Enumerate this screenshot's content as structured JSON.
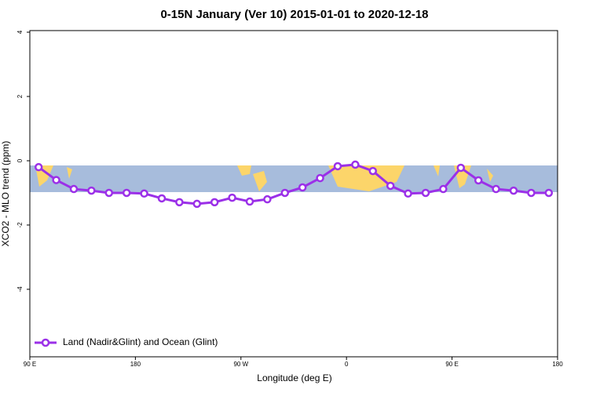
{
  "chart_data": {
    "type": "line",
    "title": "0-15N January (Ver 10)   2015-01-01 to 2020-12-18",
    "x_label": "Longitude (deg E)",
    "y_label": "XCO2 - MLO trend (ppm)",
    "legend_position": "bottom-left",
    "xlim": [
      90,
      540
    ],
    "ylim": [
      -6.1,
      4.05
    ],
    "xticks": [
      {
        "value": 90,
        "label": "90 E"
      },
      180,
      {
        "value": 270,
        "label": "90 W"
      },
      {
        "value": 360,
        "label": "0"
      },
      {
        "value": 450,
        "label": "90 E"
      },
      {
        "value": 540,
        "label": "180"
      }
    ],
    "yticks": [
      -4,
      -2,
      0,
      2,
      4
    ],
    "x": [
      97.5,
      112.5,
      127.5,
      142.5,
      157.5,
      172.5,
      187.5,
      202.5,
      217.5,
      232.5,
      247.5,
      262.5,
      277.5,
      292.5,
      307.5,
      322.5,
      337.5,
      352.5,
      367.5,
      382.5,
      397.5,
      412.5,
      427.5,
      442.5,
      457.5,
      472.5,
      487.5,
      502.5,
      517.5,
      532.5
    ],
    "series": [
      {
        "name": "Land (Nadir&Glint) and Ocean (Glint)",
        "color": "#9b30e8",
        "values": [
          -0.2,
          -0.6,
          -0.88,
          -0.93,
          -1.0,
          -1.0,
          -1.02,
          -1.17,
          -1.29,
          -1.34,
          -1.29,
          -1.15,
          -1.27,
          -1.2,
          -1.0,
          -0.83,
          -0.54,
          -0.17,
          -0.12,
          -0.32,
          -0.78,
          -1.02,
          -1.0,
          -0.88,
          -0.22,
          -0.61,
          -0.88,
          -0.93,
          -1.0,
          -1.0
        ]
      }
    ]
  }
}
